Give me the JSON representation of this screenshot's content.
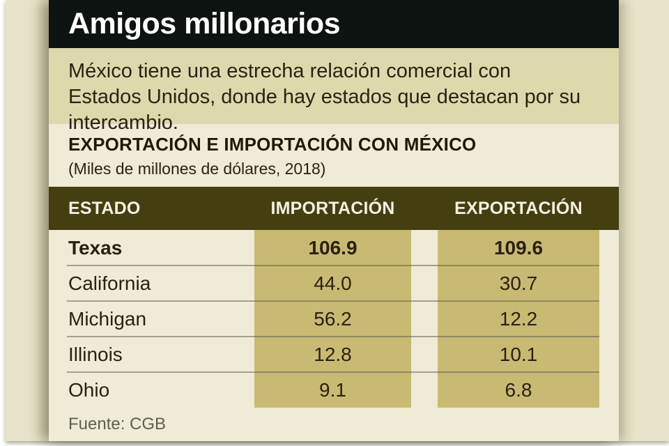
{
  "header": {
    "title": "Amigos millonarios"
  },
  "intro": {
    "text": "México tiene una estrecha relación comercial con Estados Unidos, donde hay estados que destacan por su intercambio."
  },
  "section": {
    "title": "EXPORTACIÓN E IMPORTACIÓN CON MÉXICO",
    "subtitle": "(Miles de millones de dólares, 2018)"
  },
  "chart_data": {
    "type": "table",
    "title": "EXPORTACIÓN E IMPORTACIÓN CON MÉXICO",
    "subtitle": "(Miles de millones de dólares, 2018)",
    "unit": "Miles de millones de dólares",
    "year": "2018",
    "columns": [
      "ESTADO",
      "IMPORTACIÓN",
      "EXPORTACIÓN"
    ],
    "rows": [
      {
        "state": "Texas",
        "importacion": "106.9",
        "exportacion": "109.6",
        "highlight": true
      },
      {
        "state": "California",
        "importacion": "44.0",
        "exportacion": "30.7",
        "highlight": false
      },
      {
        "state": "Michigan",
        "importacion": "56.2",
        "exportacion": "12.2",
        "highlight": false
      },
      {
        "state": "Illinois",
        "importacion": "12.8",
        "exportacion": "10.1",
        "highlight": false
      },
      {
        "state": "Ohio",
        "importacion": "9.1",
        "exportacion": "6.8",
        "highlight": false
      }
    ]
  },
  "footer": {
    "source": "Fuente: CGB"
  },
  "colors": {
    "title_band": "#0d1311",
    "title_text": "#ffffff",
    "intro_band": "#ded8ad",
    "card_background": "#efebd6",
    "backdrop_background": "#e9e4c9",
    "table_header_band": "#453e10",
    "table_header_text": "#f4f1e3",
    "column_highlight": "#c9ba73",
    "body_text": "#2a2110",
    "source_text": "#615f4e"
  }
}
